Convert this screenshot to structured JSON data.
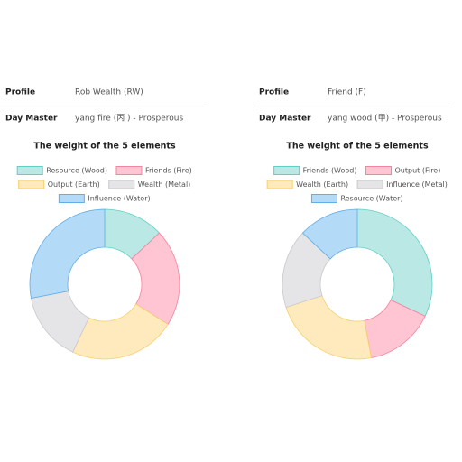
{
  "panels": [
    {
      "rows": [
        {
          "label": "Profile",
          "value": "Rob Wealth (RW)"
        },
        {
          "label": "Day Master",
          "value": "yang fire (丙 ) - Prosperous"
        }
      ]
    },
    {
      "rows": [
        {
          "label": "Profile",
          "value": "Friend (F)"
        },
        {
          "label": "Day Master",
          "value": "yang wood (甲) - Prosperous"
        }
      ]
    }
  ],
  "chart_data": [
    {
      "type": "doughnut",
      "title": "The weight of the 5 elements",
      "categories": [
        "Resource (Wood)",
        "Friends (Fire)",
        "Output (Earth)",
        "Wealth (Metal)",
        "Influence (Water)"
      ],
      "values": [
        13,
        21,
        23,
        15,
        28
      ],
      "colors": [
        "#b9e8e5",
        "#ffc5d2",
        "#feeabd",
        "#e5e5e7",
        "#b3daf7"
      ]
    },
    {
      "type": "doughnut",
      "title": "The weight of the 5 elements",
      "categories": [
        "Friends (Wood)",
        "Output (Fire)",
        "Wealth (Earth)",
        "Influence (Metal)",
        "Resource (Water)"
      ],
      "values": [
        32,
        15,
        23,
        17,
        13
      ],
      "colors": [
        "#b9e8e5",
        "#ffc5d2",
        "#feeabd",
        "#e5e5e7",
        "#b3daf7"
      ]
    }
  ]
}
